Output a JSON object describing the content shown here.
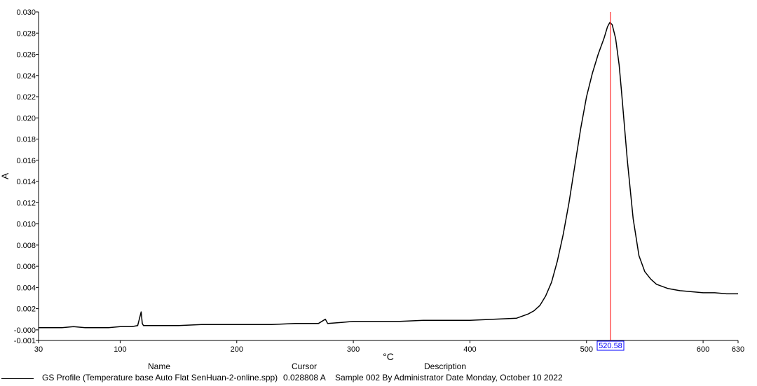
{
  "chart_data": {
    "type": "line",
    "title": "",
    "xlabel": "°C",
    "ylabel": "A",
    "xlim": [
      30,
      630
    ],
    "ylim": [
      -0.001,
      0.03
    ],
    "x_ticks": [
      30,
      100,
      200,
      300,
      400,
      500,
      600,
      630
    ],
    "x_tick_labels": [
      "30",
      "100",
      "200",
      "300",
      "400",
      "500",
      "600",
      "630"
    ],
    "y_ticks": [
      -0.001,
      0.0,
      0.002,
      0.004,
      0.006,
      0.008,
      0.01,
      0.012,
      0.014,
      0.016,
      0.018,
      0.02,
      0.022,
      0.024,
      0.026,
      0.028,
      0.03
    ],
    "y_tick_labels": [
      "-0.001",
      "-0.000",
      "0.002",
      "0.004",
      "0.006",
      "0.008",
      "0.010",
      "0.012",
      "0.014",
      "0.016",
      "0.018",
      "0.020",
      "0.022",
      "0.024",
      "0.026",
      "0.028",
      "0.030"
    ],
    "grid": false,
    "line_color": "#000000",
    "cursor_color": "#ff0000",
    "cursor_label_color": "#0000ff",
    "cursor": {
      "x": 520.58,
      "label": "520.58",
      "value": 0.028808
    },
    "series": [
      {
        "x": [
          30,
          40,
          50,
          60,
          70,
          80,
          90,
          100,
          110,
          115,
          118,
          119,
          120,
          122,
          130,
          150,
          170,
          200,
          230,
          250,
          270,
          276,
          278,
          290,
          300,
          320,
          340,
          360,
          380,
          400,
          420,
          440,
          445,
          450,
          455,
          460,
          465,
          470,
          475,
          480,
          485,
          490,
          495,
          500,
          505,
          510,
          515,
          518,
          520,
          522,
          525,
          528,
          530,
          535,
          540,
          545,
          550,
          555,
          560,
          570,
          580,
          590,
          600,
          610,
          620,
          630
        ],
        "y": [
          0.0002,
          0.0002,
          0.0002,
          0.0003,
          0.0002,
          0.0002,
          0.0002,
          0.0003,
          0.0003,
          0.0004,
          0.0017,
          0.0006,
          0.0004,
          0.0004,
          0.0004,
          0.0004,
          0.0005,
          0.0005,
          0.0005,
          0.0006,
          0.0006,
          0.001,
          0.0006,
          0.0007,
          0.0008,
          0.0008,
          0.0008,
          0.0009,
          0.0009,
          0.0009,
          0.001,
          0.0011,
          0.0013,
          0.0015,
          0.0018,
          0.0023,
          0.0032,
          0.0045,
          0.0065,
          0.009,
          0.012,
          0.0155,
          0.019,
          0.022,
          0.0242,
          0.026,
          0.0275,
          0.0286,
          0.029,
          0.0288,
          0.0275,
          0.025,
          0.0225,
          0.016,
          0.0105,
          0.007,
          0.0055,
          0.0048,
          0.0043,
          0.0039,
          0.0037,
          0.0036,
          0.0035,
          0.0035,
          0.0034,
          0.0034
        ]
      }
    ]
  },
  "legend": {
    "headers": {
      "name": "Name",
      "cursor": "Cursor",
      "description": "Description"
    },
    "row": {
      "name": "GS Profile (Temperature  base Auto Flat SenHuan-2-online.spp)",
      "cursor": "0.028808 A",
      "description": "Sample 002 By Administrator Date Monday, October 10 2022"
    }
  }
}
